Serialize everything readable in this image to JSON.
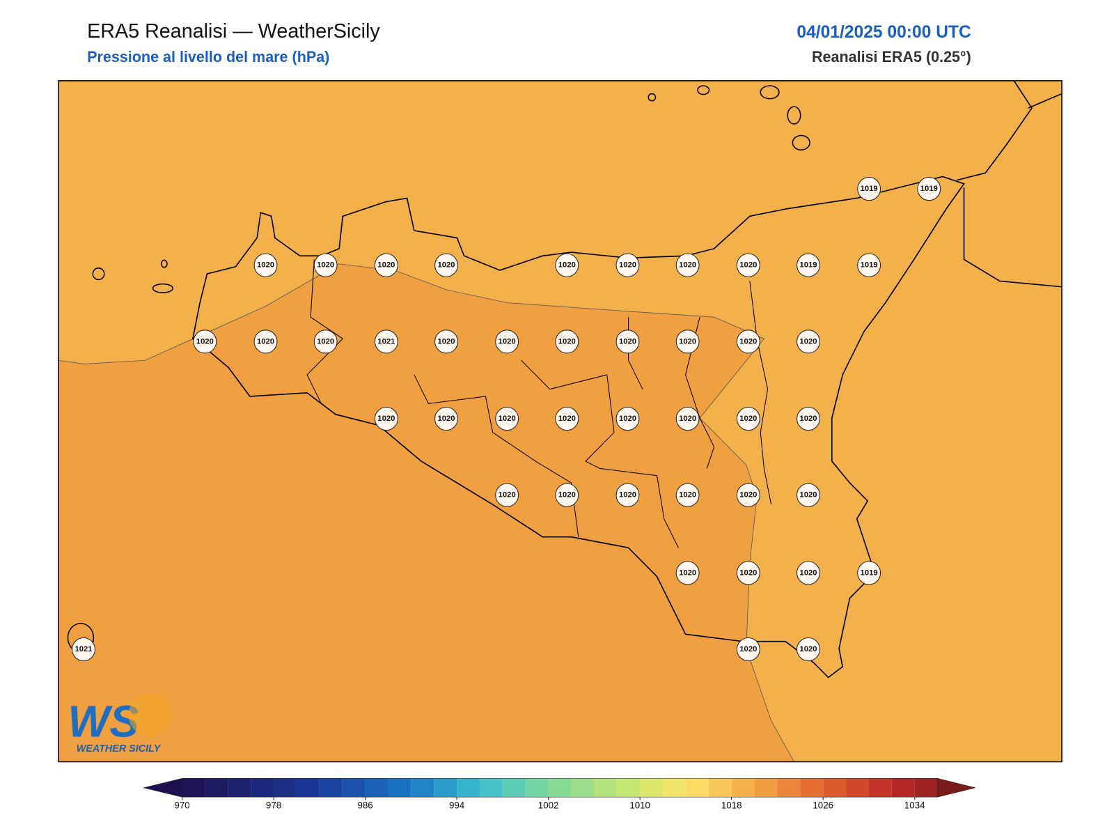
{
  "header": {
    "title": "ERA5 Reanalisi — WeatherSicily",
    "subtitle": "Pressione al livello del mare (hPa)",
    "date": "04/01/2025 00:00 UTC",
    "source": "Reanalisi ERA5 (0.25°)"
  },
  "stations": [
    1019,
    1019,
    1020,
    1020,
    1020,
    1020,
    1020,
    1020,
    1020,
    1020,
    1019,
    1019,
    1020,
    1020,
    1020,
    1021,
    1020,
    1020,
    1020,
    1020,
    1020,
    1020,
    1020,
    1020,
    1020,
    1020,
    1020,
    1020,
    1020,
    1020,
    1020,
    1020,
    1020,
    1020,
    1020,
    1020,
    1020,
    1020,
    1020,
    1020,
    1019,
    1021,
    1020,
    1020
  ],
  "colorbar": {
    "range": [
      970,
      1036
    ],
    "step": 2,
    "ticks": [
      970,
      978,
      986,
      994,
      1002,
      1010,
      1018,
      1026,
      1034
    ],
    "colormap": [
      [
        970,
        "#1e0f4f"
      ],
      [
        982,
        "#1a3a9a"
      ],
      [
        990,
        "#1a78c8"
      ],
      [
        996,
        "#3bbfd0"
      ],
      [
        1002,
        "#7ed99a"
      ],
      [
        1010,
        "#cfe86a"
      ],
      [
        1014,
        "#fde56a"
      ],
      [
        1020,
        "#f3a845"
      ],
      [
        1026,
        "#e3622f"
      ],
      [
        1032,
        "#c02a28"
      ],
      [
        1038,
        "#7a1a1a"
      ]
    ]
  },
  "logo": {
    "mark": "WS",
    "name": "WEATHER SICILY"
  }
}
